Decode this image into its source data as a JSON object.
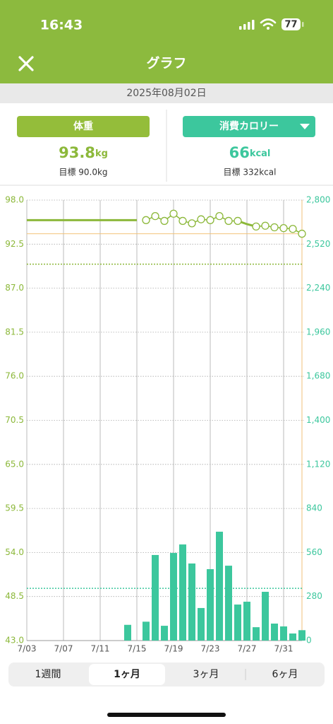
{
  "status_bar": {
    "time": "16:43",
    "battery": "77"
  },
  "header": {
    "title": "グラフ"
  },
  "date": "2025年08月02日",
  "weight_panel": {
    "button": "体重",
    "value": "93.8",
    "unit": "kg",
    "goal": "目標 90.0kg"
  },
  "calorie_panel": {
    "button": "消費カロリー",
    "value": "66",
    "unit": "kcal",
    "goal": "目標 332kcal"
  },
  "chart_data": {
    "type": "combo",
    "categories": [
      "7/03",
      null,
      null,
      null,
      "7/07",
      null,
      null,
      null,
      "7/11",
      null,
      null,
      null,
      "7/15",
      null,
      null,
      null,
      "7/19",
      null,
      null,
      null,
      "7/23",
      null,
      null,
      null,
      "7/27",
      null,
      null,
      null,
      "7/31",
      null,
      null
    ],
    "ylim": [
      43,
      98
    ],
    "yticks": [
      {
        "value": 98,
        "label": "98.0"
      },
      92.5,
      {
        "value": 87,
        "label": "87.0"
      },
      81.5,
      {
        "value": 76,
        "label": "76.0"
      },
      70.5,
      {
        "value": 65,
        "label": "65.0"
      },
      59.5,
      {
        "value": 54,
        "label": "54.0"
      },
      48.5,
      {
        "value": 43,
        "label": "43.0"
      }
    ],
    "y2lim": [
      0,
      2800
    ],
    "y2ticks": [
      {
        "value": 2800,
        "label": "2,800"
      },
      {
        "value": 2520,
        "label": "2,520"
      },
      {
        "value": 2240,
        "label": "2,240"
      },
      {
        "value": 1960,
        "label": "1,960"
      },
      {
        "value": 1680,
        "label": "1,680"
      },
      {
        "value": 1400,
        "label": "1,400"
      },
      {
        "value": 1120,
        "label": "1,120"
      },
      840,
      560,
      280,
      0
    ],
    "grid": true,
    "series": [
      {
        "type": "line",
        "color": "#8cb83a",
        "markers": false,
        "values": [
          95.5,
          95.5,
          95.5,
          95.5,
          95.5,
          95.5,
          95.5,
          95.5,
          95.5,
          95.5,
          95.5,
          95.5,
          95.5,
          null,
          null,
          null,
          null,
          null,
          null,
          null,
          null,
          null,
          null,
          95.4,
          95.0,
          94.7,
          null,
          null,
          null,
          null,
          null
        ]
      },
      {
        "type": "line",
        "color": "#8cb83a",
        "markers": true,
        "values": [
          null,
          null,
          null,
          null,
          null,
          null,
          null,
          null,
          null,
          null,
          null,
          null,
          null,
          95.5,
          96.0,
          95.4,
          96.3,
          95.4,
          95.1,
          95.6,
          95.5,
          96.0,
          95.4,
          95.4,
          null,
          94.7,
          94.8,
          94.6,
          94.5,
          94.4,
          93.8
        ]
      },
      {
        "type": "bar",
        "axis": "y2",
        "color": "#3cc79d",
        "values": [
          null,
          null,
          null,
          null,
          null,
          null,
          null,
          null,
          null,
          null,
          null,
          100,
          null,
          120,
          544,
          94,
          557,
          611,
          490,
          207,
          454,
          692,
          476,
          229,
          247,
          85,
          310,
          108,
          90,
          45,
          66
        ]
      }
    ],
    "goal_lines": [
      {
        "value": 90,
        "color": "#8cb83a"
      },
      {
        "value": 332,
        "axis": "y2",
        "color": "#3cc79d"
      }
    ]
  },
  "period_tabs": {
    "options": [
      "1週間",
      "1ヶ月",
      "3ヶ月",
      "6ヶ月"
    ],
    "selected": 1
  }
}
